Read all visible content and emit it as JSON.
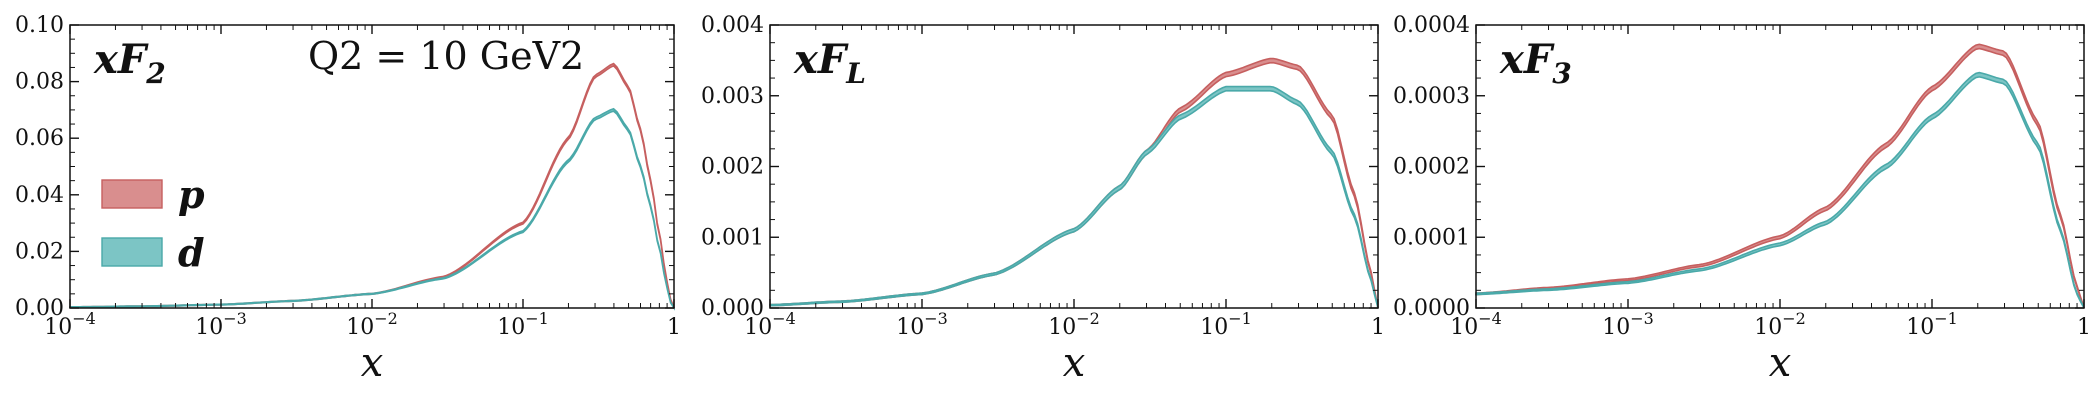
{
  "chart_data": [
    {
      "type": "area",
      "title": "xF2",
      "annotation": "Q2 = 10 GeV2",
      "xlabel": "x",
      "ylabel": "",
      "xscale": "log",
      "xlim": [
        0.0001,
        1
      ],
      "ylim": [
        0,
        0.1
      ],
      "xticks": [
        "10-4",
        "10-3",
        "10-2",
        "10-1",
        "1"
      ],
      "yticks": [
        "0.00",
        "0.02",
        "0.04",
        "0.06",
        "0.08",
        "0.10"
      ],
      "legend": {
        "placement": "center-left",
        "entries": [
          "p",
          "d"
        ]
      },
      "series": [
        {
          "name": "p",
          "color": "#d98e8e",
          "edge": "#c65f5f",
          "x": [
            0.0001,
            0.0003,
            0.001,
            0.003,
            0.01,
            0.03,
            0.1,
            0.2,
            0.3,
            0.4,
            0.5,
            0.6,
            0.7,
            0.8,
            0.9,
            0.95,
            1.0
          ],
          "y": [
            0.0003,
            0.0006,
            0.0012,
            0.0025,
            0.005,
            0.011,
            0.03,
            0.06,
            0.082,
            0.086,
            0.078,
            0.063,
            0.045,
            0.026,
            0.009,
            0.003,
            0.0
          ],
          "band": 0.0008
        },
        {
          "name": "d",
          "color": "#7cc5c5",
          "edge": "#4aa9a9",
          "x": [
            0.0001,
            0.0003,
            0.001,
            0.003,
            0.01,
            0.03,
            0.1,
            0.2,
            0.3,
            0.4,
            0.5,
            0.6,
            0.7,
            0.8,
            0.9,
            0.95,
            1.0
          ],
          "y": [
            0.0003,
            0.0006,
            0.0012,
            0.0025,
            0.005,
            0.0105,
            0.027,
            0.052,
            0.067,
            0.07,
            0.063,
            0.05,
            0.036,
            0.021,
            0.007,
            0.002,
            0.0
          ],
          "band": 0.0008
        }
      ]
    },
    {
      "type": "area",
      "title": "xFL",
      "xlabel": "x",
      "ylabel": "",
      "xscale": "log",
      "xlim": [
        0.0001,
        1
      ],
      "ylim": [
        0,
        0.004
      ],
      "xticks": [
        "10-4",
        "10-3",
        "10-2",
        "10-1",
        "1"
      ],
      "yticks": [
        "0.000",
        "0.001",
        "0.002",
        "0.003",
        "0.004"
      ],
      "series": [
        {
          "name": "p",
          "color": "#d98e8e",
          "edge": "#c65f5f",
          "x": [
            0.0001,
            0.0003,
            0.001,
            0.003,
            0.01,
            0.02,
            0.03,
            0.05,
            0.1,
            0.2,
            0.3,
            0.5,
            0.7,
            0.9,
            1.0
          ],
          "y": [
            4e-05,
            9e-05,
            0.0002,
            0.00048,
            0.0011,
            0.0017,
            0.0022,
            0.0028,
            0.0033,
            0.0035,
            0.0034,
            0.0027,
            0.0016,
            0.0005,
            0.0
          ],
          "band": 6e-05
        },
        {
          "name": "d",
          "color": "#7cc5c5",
          "edge": "#4aa9a9",
          "x": [
            0.0001,
            0.0003,
            0.001,
            0.003,
            0.01,
            0.02,
            0.03,
            0.05,
            0.1,
            0.2,
            0.3,
            0.5,
            0.7,
            0.9,
            1.0
          ],
          "y": [
            4e-05,
            9e-05,
            0.0002,
            0.00048,
            0.0011,
            0.0017,
            0.0022,
            0.0027,
            0.0031,
            0.0031,
            0.0029,
            0.0022,
            0.0013,
            0.0004,
            0.0
          ],
          "band": 6e-05
        }
      ]
    },
    {
      "type": "area",
      "title": "xF3",
      "xlabel": "x",
      "ylabel": "",
      "xscale": "log",
      "xlim": [
        0.0001,
        1
      ],
      "ylim": [
        0,
        0.0004
      ],
      "xticks": [
        "10-4",
        "10-3",
        "10-2",
        "10-1",
        "1"
      ],
      "yticks": [
        "0.0000",
        "0.0001",
        "0.0002",
        "0.0003",
        "0.0004"
      ],
      "series": [
        {
          "name": "p",
          "color": "#d98e8e",
          "edge": "#c65f5f",
          "x": [
            0.0001,
            0.0003,
            0.001,
            0.003,
            0.01,
            0.02,
            0.05,
            0.1,
            0.2,
            0.3,
            0.5,
            0.7,
            0.9,
            1.0
          ],
          "y": [
            2e-05,
            2.8e-05,
            4e-05,
            6e-05,
            0.0001,
            0.00014,
            0.00023,
            0.00031,
            0.00037,
            0.00036,
            0.00026,
            0.00013,
            3e-05,
            0.0
          ],
          "band": 6e-06
        },
        {
          "name": "d",
          "color": "#7cc5c5",
          "edge": "#4aa9a9",
          "x": [
            0.0001,
            0.0003,
            0.001,
            0.003,
            0.01,
            0.02,
            0.05,
            0.1,
            0.2,
            0.3,
            0.5,
            0.7,
            0.9,
            1.0
          ],
          "y": [
            2e-05,
            2.6e-05,
            3.6e-05,
            5.4e-05,
            9e-05,
            0.00012,
            0.0002,
            0.00027,
            0.00033,
            0.00032,
            0.00023,
            0.00011,
            2e-05,
            0.0
          ],
          "band": 6e-06
        }
      ]
    }
  ]
}
